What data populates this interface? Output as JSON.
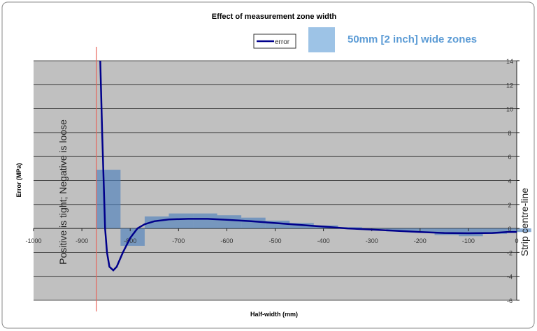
{
  "chart_data": {
    "type": "line+bar",
    "title": "Effect of measurement zone width",
    "xlabel": "Half-width (mm)",
    "ylabel": "Error (MPa)",
    "xlim": [
      -1000,
      0
    ],
    "ylim": [
      -6,
      14
    ],
    "x_ticks": [
      -1000,
      -900,
      -800,
      -700,
      -600,
      -500,
      -400,
      -300,
      -200,
      -100,
      0
    ],
    "y_ticks": [
      -6,
      -4,
      -2,
      0,
      2,
      4,
      6,
      8,
      10,
      12,
      14
    ],
    "grid": "horizontal",
    "legend": {
      "placement": "top",
      "entries": [
        "error"
      ]
    },
    "zones_label": "50mm [2 inch] wide zones",
    "annotation_left": "Positive is tight; Negative is loose",
    "annotation_right": "Strip centre-line",
    "edge_marker_x": -870,
    "colors": {
      "line": "#00008b",
      "bars": "#4f81bd",
      "zones_label": "#5b9bd5",
      "plot_bg": "#c0c0c0",
      "edge_marker": "#e8655a"
    },
    "bars": {
      "width": 50,
      "starts": [
        -870,
        -820,
        -770,
        -720,
        -670,
        -620,
        -570,
        -520,
        -470,
        -420,
        -370,
        -320,
        -270,
        -220,
        -170,
        -120,
        -70,
        -20
      ],
      "values": [
        4.9,
        -1.45,
        1.0,
        1.25,
        1.25,
        1.1,
        0.9,
        0.65,
        0.45,
        0.25,
        0.1,
        -0.05,
        -0.25,
        -0.35,
        -0.55,
        -0.65,
        -0.45,
        -0.3
      ]
    },
    "series": [
      {
        "name": "error",
        "x": [
          -862,
          -858,
          -855,
          -852,
          -848,
          -843,
          -835,
          -828,
          -815,
          -800,
          -785,
          -770,
          -750,
          -720,
          -680,
          -640,
          -600,
          -550,
          -500,
          -450,
          -400,
          -350,
          -300,
          -250,
          -200,
          -150,
          -100,
          -50,
          -20,
          0
        ],
        "y": [
          14,
          8,
          4,
          0,
          -2,
          -3.2,
          -3.5,
          -3.2,
          -2,
          -0.8,
          0,
          0.35,
          0.6,
          0.75,
          0.8,
          0.8,
          0.72,
          0.6,
          0.45,
          0.3,
          0.15,
          0.0,
          -0.1,
          -0.2,
          -0.3,
          -0.38,
          -0.4,
          -0.38,
          -0.3,
          -0.3
        ]
      }
    ]
  }
}
